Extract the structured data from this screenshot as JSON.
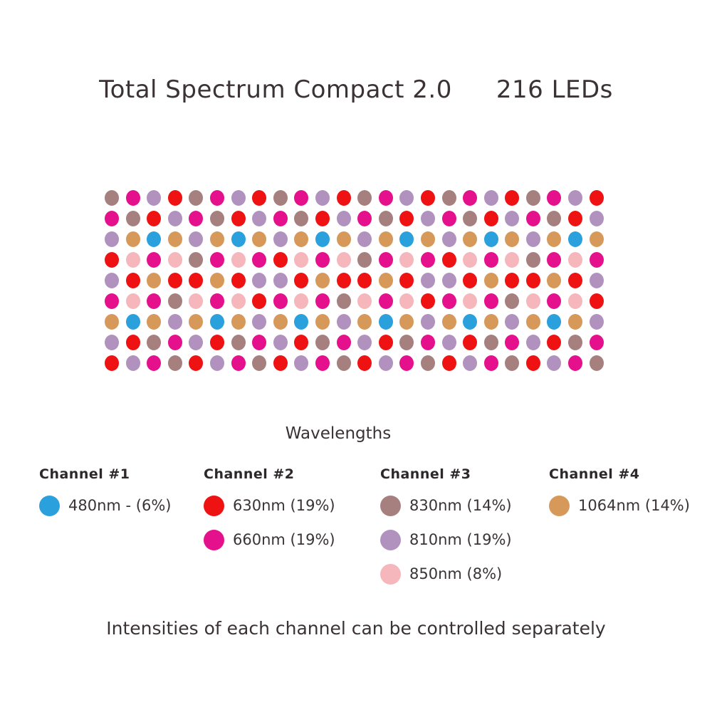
{
  "header": {
    "product": "Total Spectrum Compact 2.0",
    "led_count": "216 LEDs"
  },
  "colors": {
    "480": "#2aa0dc",
    "630": "#ee1213",
    "660": "#e5108c",
    "830": "#a6807f",
    "810": "#b192be",
    "850": "#f5b7bc",
    "1064": "#d7995a"
  },
  "led_grid": {
    "cols": 24,
    "total_leds": 216,
    "rows": [
      {
        "base": [
          "830",
          "660",
          "810",
          "630"
        ],
        "repeat": 6
      },
      {
        "base": [
          "660",
          "830",
          "630",
          "810"
        ],
        "repeat": 6
      },
      {
        "base": [
          "810",
          "1064",
          "480",
          "1064"
        ],
        "repeat": 6
      },
      {
        "base": [
          "630",
          "850",
          "660",
          "850",
          "830",
          "660",
          "850",
          "660"
        ],
        "repeat": 3
      },
      {
        "base": [
          "810",
          "630",
          "1064",
          "630",
          "630",
          "1064",
          "630",
          "810"
        ],
        "repeat": 3
      },
      {
        "base": [
          "660",
          "850",
          "660",
          "830",
          "850",
          "660",
          "850",
          "630"
        ],
        "repeat": 3
      },
      {
        "base": [
          "1064",
          "480",
          "1064",
          "810"
        ],
        "repeat": 6
      },
      {
        "base": [
          "810",
          "630",
          "830",
          "660"
        ],
        "repeat": 6
      },
      {
        "base": [
          "630",
          "810",
          "660",
          "830"
        ],
        "repeat": 6
      }
    ]
  },
  "legend": {
    "title": "Wavelengths",
    "channels": [
      {
        "label": "Channel #1",
        "entries": [
          {
            "wavelength": "480",
            "text": "480nm - (6%)"
          }
        ]
      },
      {
        "label": "Channel #2",
        "entries": [
          {
            "wavelength": "630",
            "text": "630nm (19%)"
          },
          {
            "wavelength": "660",
            "text": "660nm (19%)"
          }
        ]
      },
      {
        "label": "Channel #3",
        "entries": [
          {
            "wavelength": "830",
            "text": "830nm (14%)"
          },
          {
            "wavelength": "810",
            "text": "810nm (19%)"
          },
          {
            "wavelength": "850",
            "text": "850nm (8%)"
          }
        ]
      },
      {
        "label": "Channel #4",
        "entries": [
          {
            "wavelength": "1064",
            "text": "1064nm (14%)"
          }
        ]
      }
    ]
  },
  "footer": "Intensities of each channel can be controlled separately"
}
